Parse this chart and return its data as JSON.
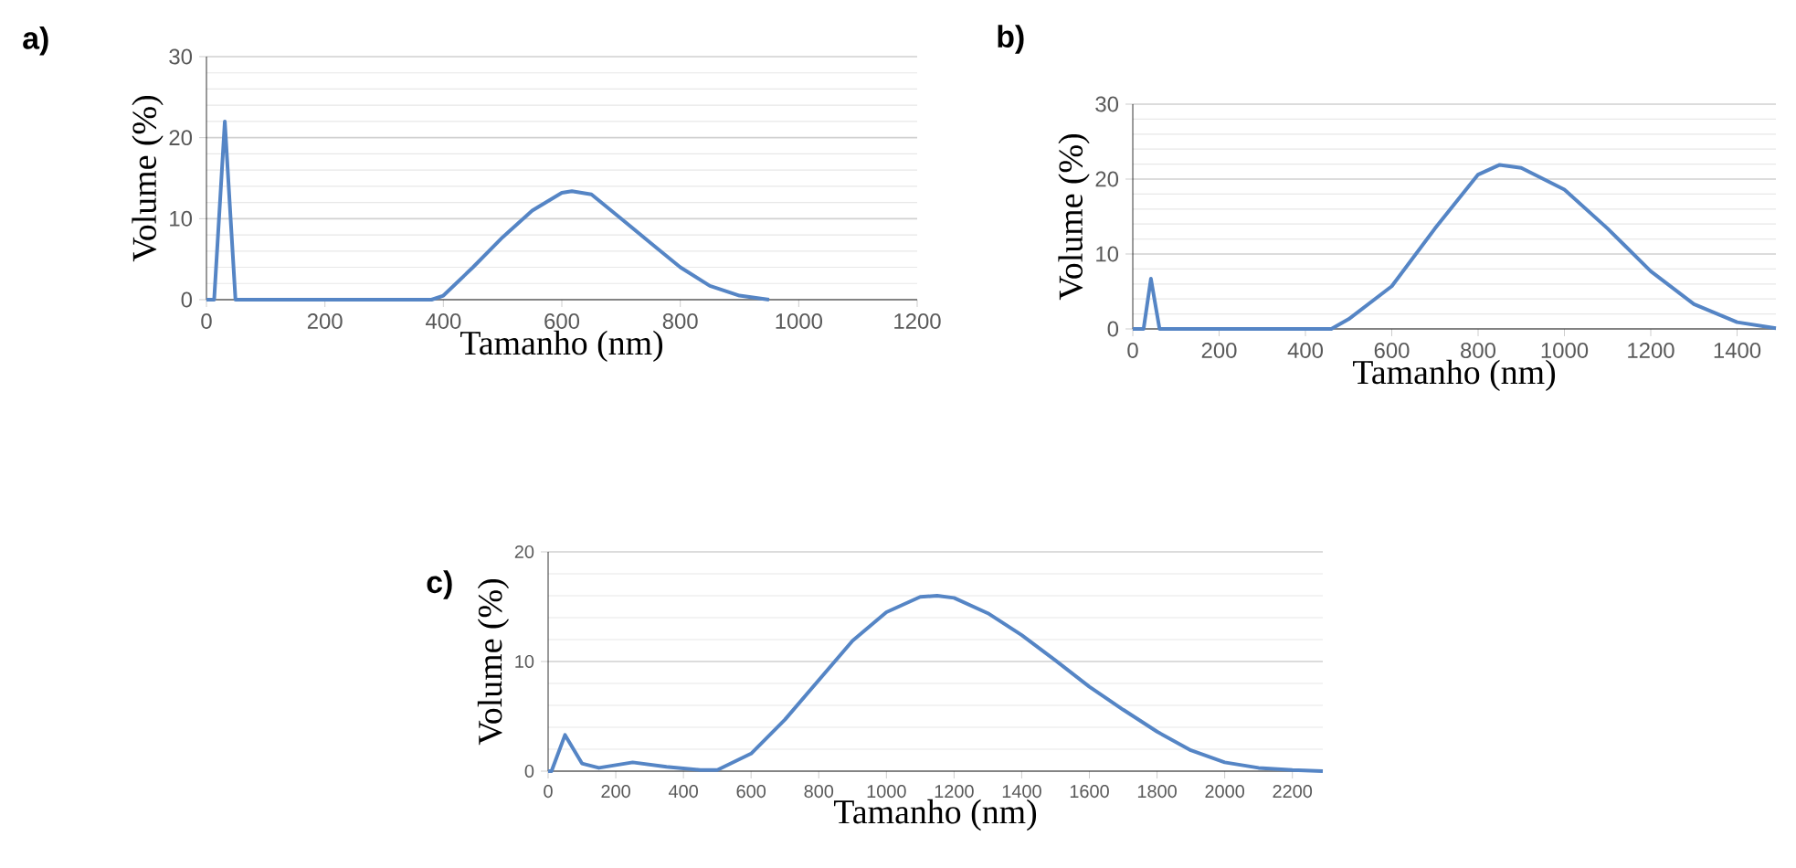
{
  "chart_data": [
    {
      "type": "line",
      "title": "a)",
      "xlabel": "Tamanho (nm)",
      "ylabel": "Volume (%)",
      "xlim": [
        0,
        1200
      ],
      "ylim": [
        0,
        30
      ],
      "xticks": [
        0,
        200,
        400,
        600,
        800,
        1000,
        1200
      ],
      "yticks": [
        0,
        10,
        20,
        30
      ],
      "grid": "y",
      "marker": "none",
      "line_style": "solid",
      "series": [
        {
          "color": "#5585c5",
          "x": [
            0,
            13,
            31,
            49,
            100,
            200,
            300,
            380,
            400,
            450,
            500,
            550,
            600,
            617,
            650,
            700,
            750,
            800,
            850,
            900,
            950
          ],
          "values": [
            0,
            0,
            22,
            0,
            0,
            0,
            0,
            0,
            0.5,
            4,
            7.7,
            11,
            13.2,
            13.4,
            13,
            10,
            7,
            4,
            1.7,
            0.5,
            0
          ]
        }
      ]
    },
    {
      "type": "line",
      "title": "b)",
      "xlabel": "Tamanho (nm)",
      "ylabel": "Volume (%)",
      "xlim": [
        0,
        1490
      ],
      "ylim": [
        0,
        30
      ],
      "xticks": [
        0,
        200,
        400,
        600,
        800,
        1000,
        1200,
        1400
      ],
      "yticks": [
        0,
        10,
        20,
        30
      ],
      "grid": "y",
      "marker": "none",
      "line_style": "solid",
      "series": [
        {
          "color": "#5585c5",
          "x": [
            0,
            25,
            42,
            62,
            100,
            200,
            300,
            400,
            460,
            500,
            600,
            700,
            800,
            850,
            900,
            1000,
            1100,
            1200,
            1300,
            1400,
            1490
          ],
          "values": [
            0,
            0,
            6.7,
            0,
            0,
            0,
            0,
            0,
            0,
            1.3,
            5.7,
            13.4,
            20.6,
            21.9,
            21.5,
            18.6,
            13.4,
            7.7,
            3.3,
            0.9,
            0.1
          ]
        }
      ]
    },
    {
      "type": "line",
      "title": "c)",
      "xlabel": "Tamanho (nm)",
      "ylabel": "Volume (%)",
      "xlim": [
        0,
        2290
      ],
      "ylim": [
        0,
        20
      ],
      "xticks": [
        0,
        200,
        400,
        600,
        800,
        1000,
        1200,
        1400,
        1600,
        1800,
        2000,
        2200
      ],
      "yticks": [
        0,
        10,
        20
      ],
      "grid": "y",
      "marker": "none",
      "line_style": "solid",
      "series": [
        {
          "color": "#5585c5",
          "x": [
            0,
            10,
            50,
            100,
            150,
            250,
            350,
            450,
            500,
            600,
            700,
            800,
            900,
            1000,
            1100,
            1150,
            1200,
            1300,
            1400,
            1500,
            1600,
            1700,
            1800,
            1900,
            2000,
            2100,
            2200,
            2290
          ],
          "values": [
            0,
            0,
            3.3,
            0.7,
            0.3,
            0.8,
            0.4,
            0.1,
            0.1,
            1.6,
            4.7,
            8.3,
            11.9,
            14.5,
            15.9,
            16,
            15.8,
            14.4,
            12.4,
            10.1,
            7.7,
            5.6,
            3.6,
            1.9,
            0.8,
            0.3,
            0.1,
            0
          ]
        }
      ]
    }
  ]
}
